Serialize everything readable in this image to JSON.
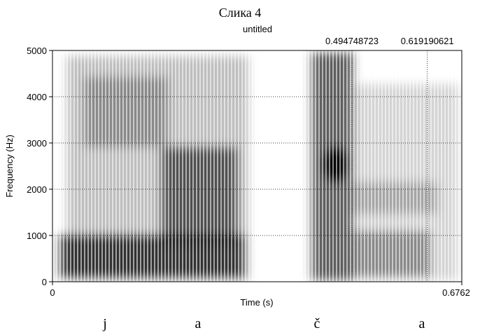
{
  "chart_data": {
    "type": "spectrogram",
    "title": "Слика 4",
    "subtitle": "untitled",
    "xlabel": "Time (s)",
    "ylabel": "Frequency (Hz)",
    "xlim": [
      0,
      0.6762
    ],
    "ylim": [
      0,
      5000
    ],
    "xticks": [
      0,
      0.6762
    ],
    "yticks": [
      0,
      1000,
      2000,
      3000,
      4000,
      5000
    ],
    "cursors": [
      0.494748723,
      0.619190621
    ],
    "segments": [
      "j",
      "a",
      "č",
      "a"
    ],
    "grid": true
  }
}
